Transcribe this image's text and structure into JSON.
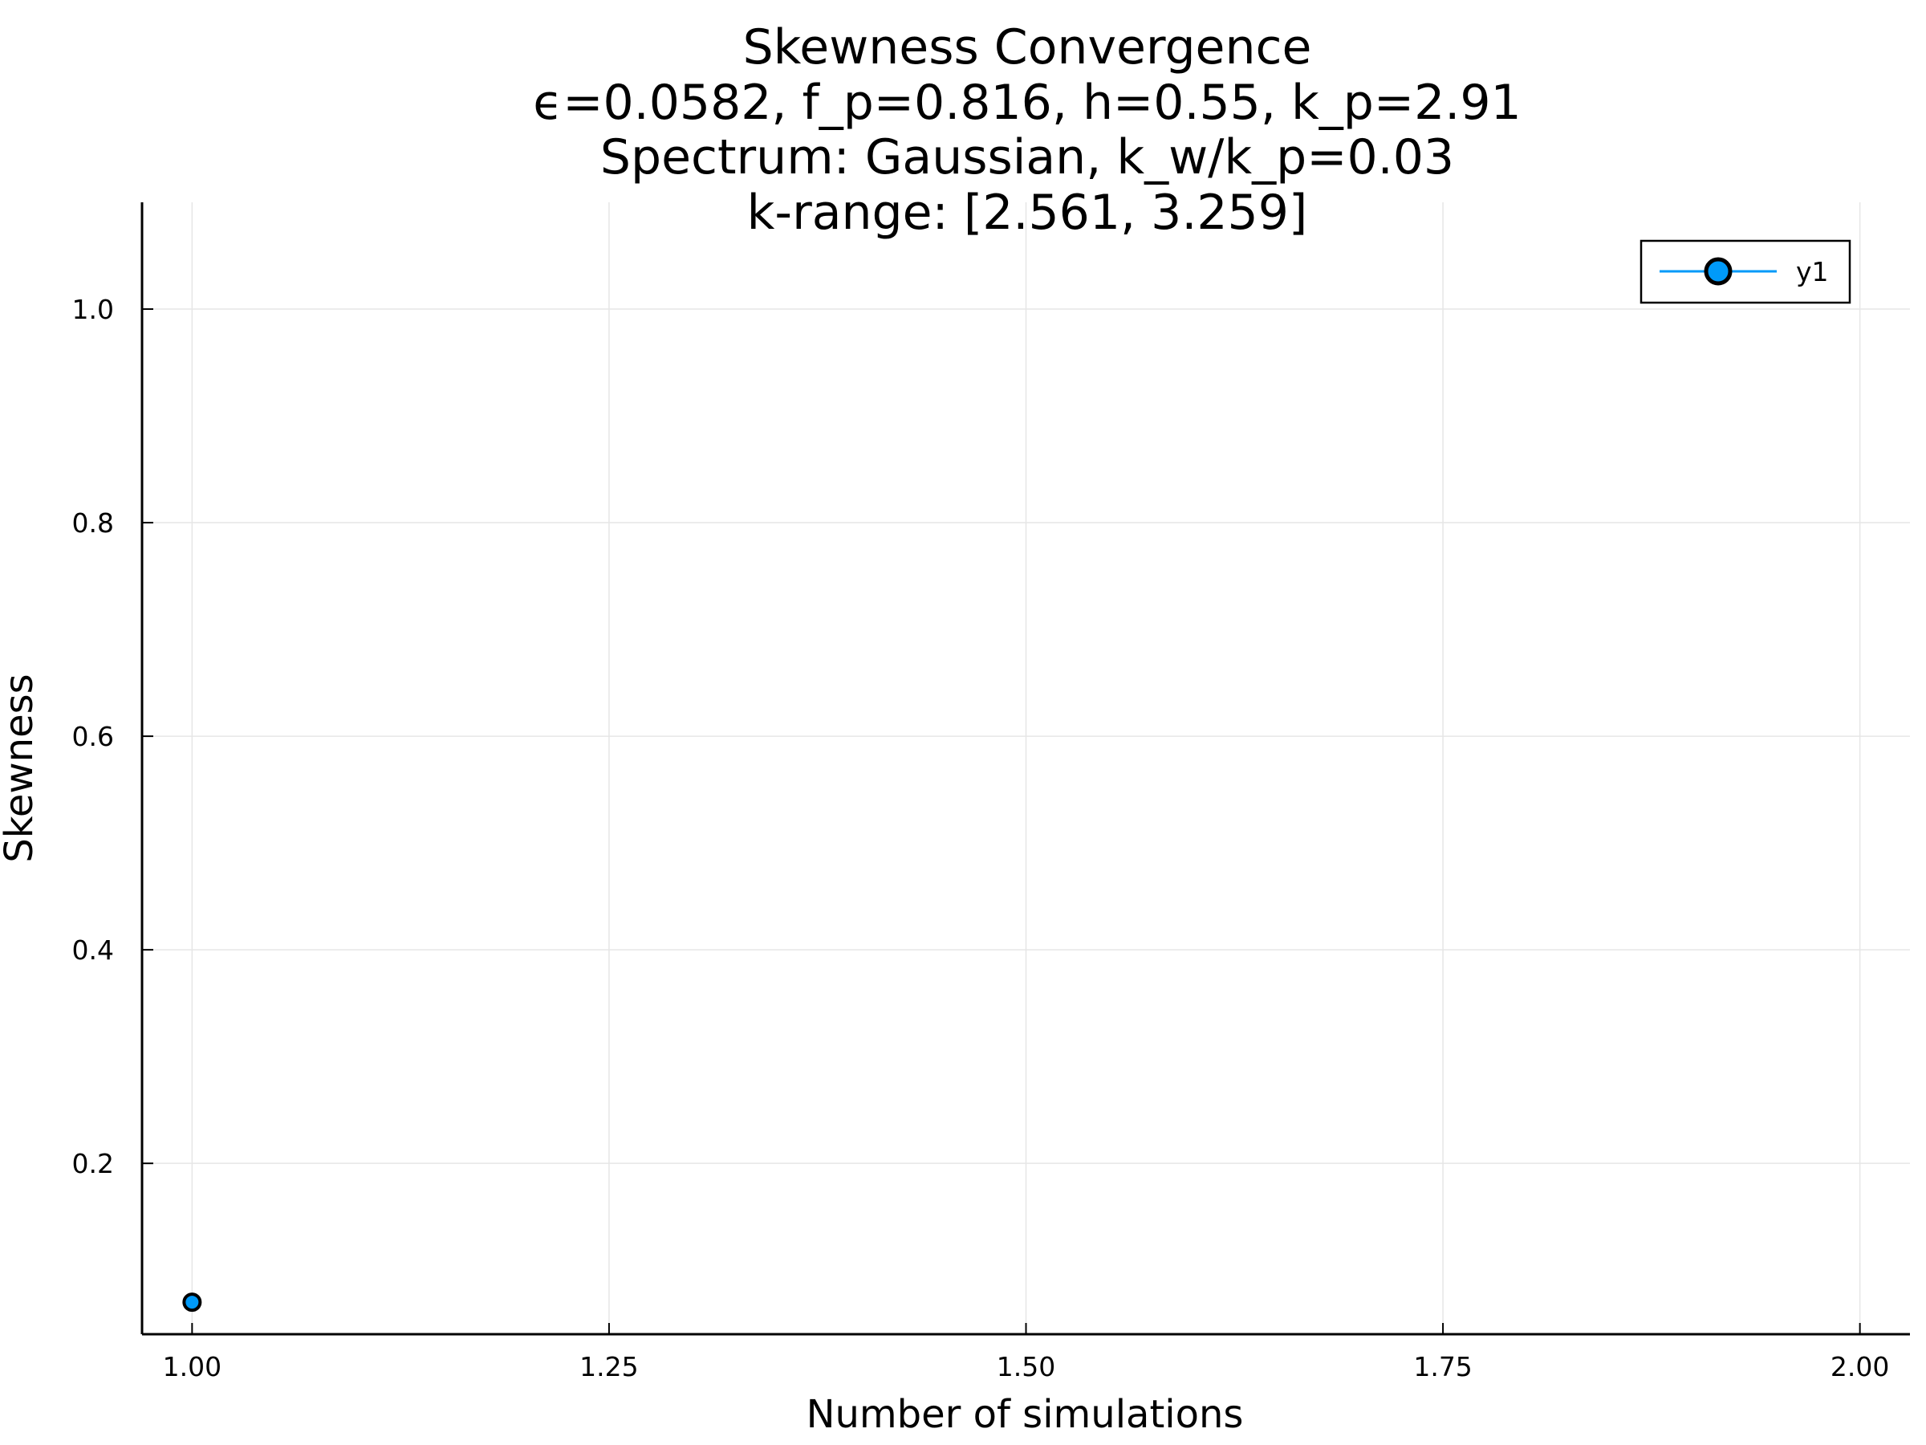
{
  "chart_data": {
    "type": "scatter",
    "title_lines": [
      "Skewness Convergence",
      "ϵ=0.0582, f_p=0.816, h=0.55, k_p=2.91",
      "Spectrum: Gaussian, k_w/k_p=0.03",
      "k-range: [2.561, 3.259]"
    ],
    "xlabel": "Number of simulations",
    "ylabel": "Skewness",
    "xlim": [
      0.97,
      2.03
    ],
    "ylim": [
      0.04,
      1.1
    ],
    "x_ticks": [
      1.0,
      1.25,
      1.5,
      1.75,
      2.0
    ],
    "x_tick_labels": [
      "1.00",
      "1.25",
      "1.50",
      "1.75",
      "2.00"
    ],
    "y_ticks": [
      0.2,
      0.4,
      0.6,
      0.8,
      1.0
    ],
    "y_tick_labels": [
      "0.2",
      "0.4",
      "0.6",
      "0.8",
      "1.0"
    ],
    "grid": true,
    "legend_position": "top-right",
    "series": [
      {
        "name": "y1",
        "color": "#009af9",
        "x": [
          1.0
        ],
        "y": [
          0.07
        ]
      }
    ]
  }
}
